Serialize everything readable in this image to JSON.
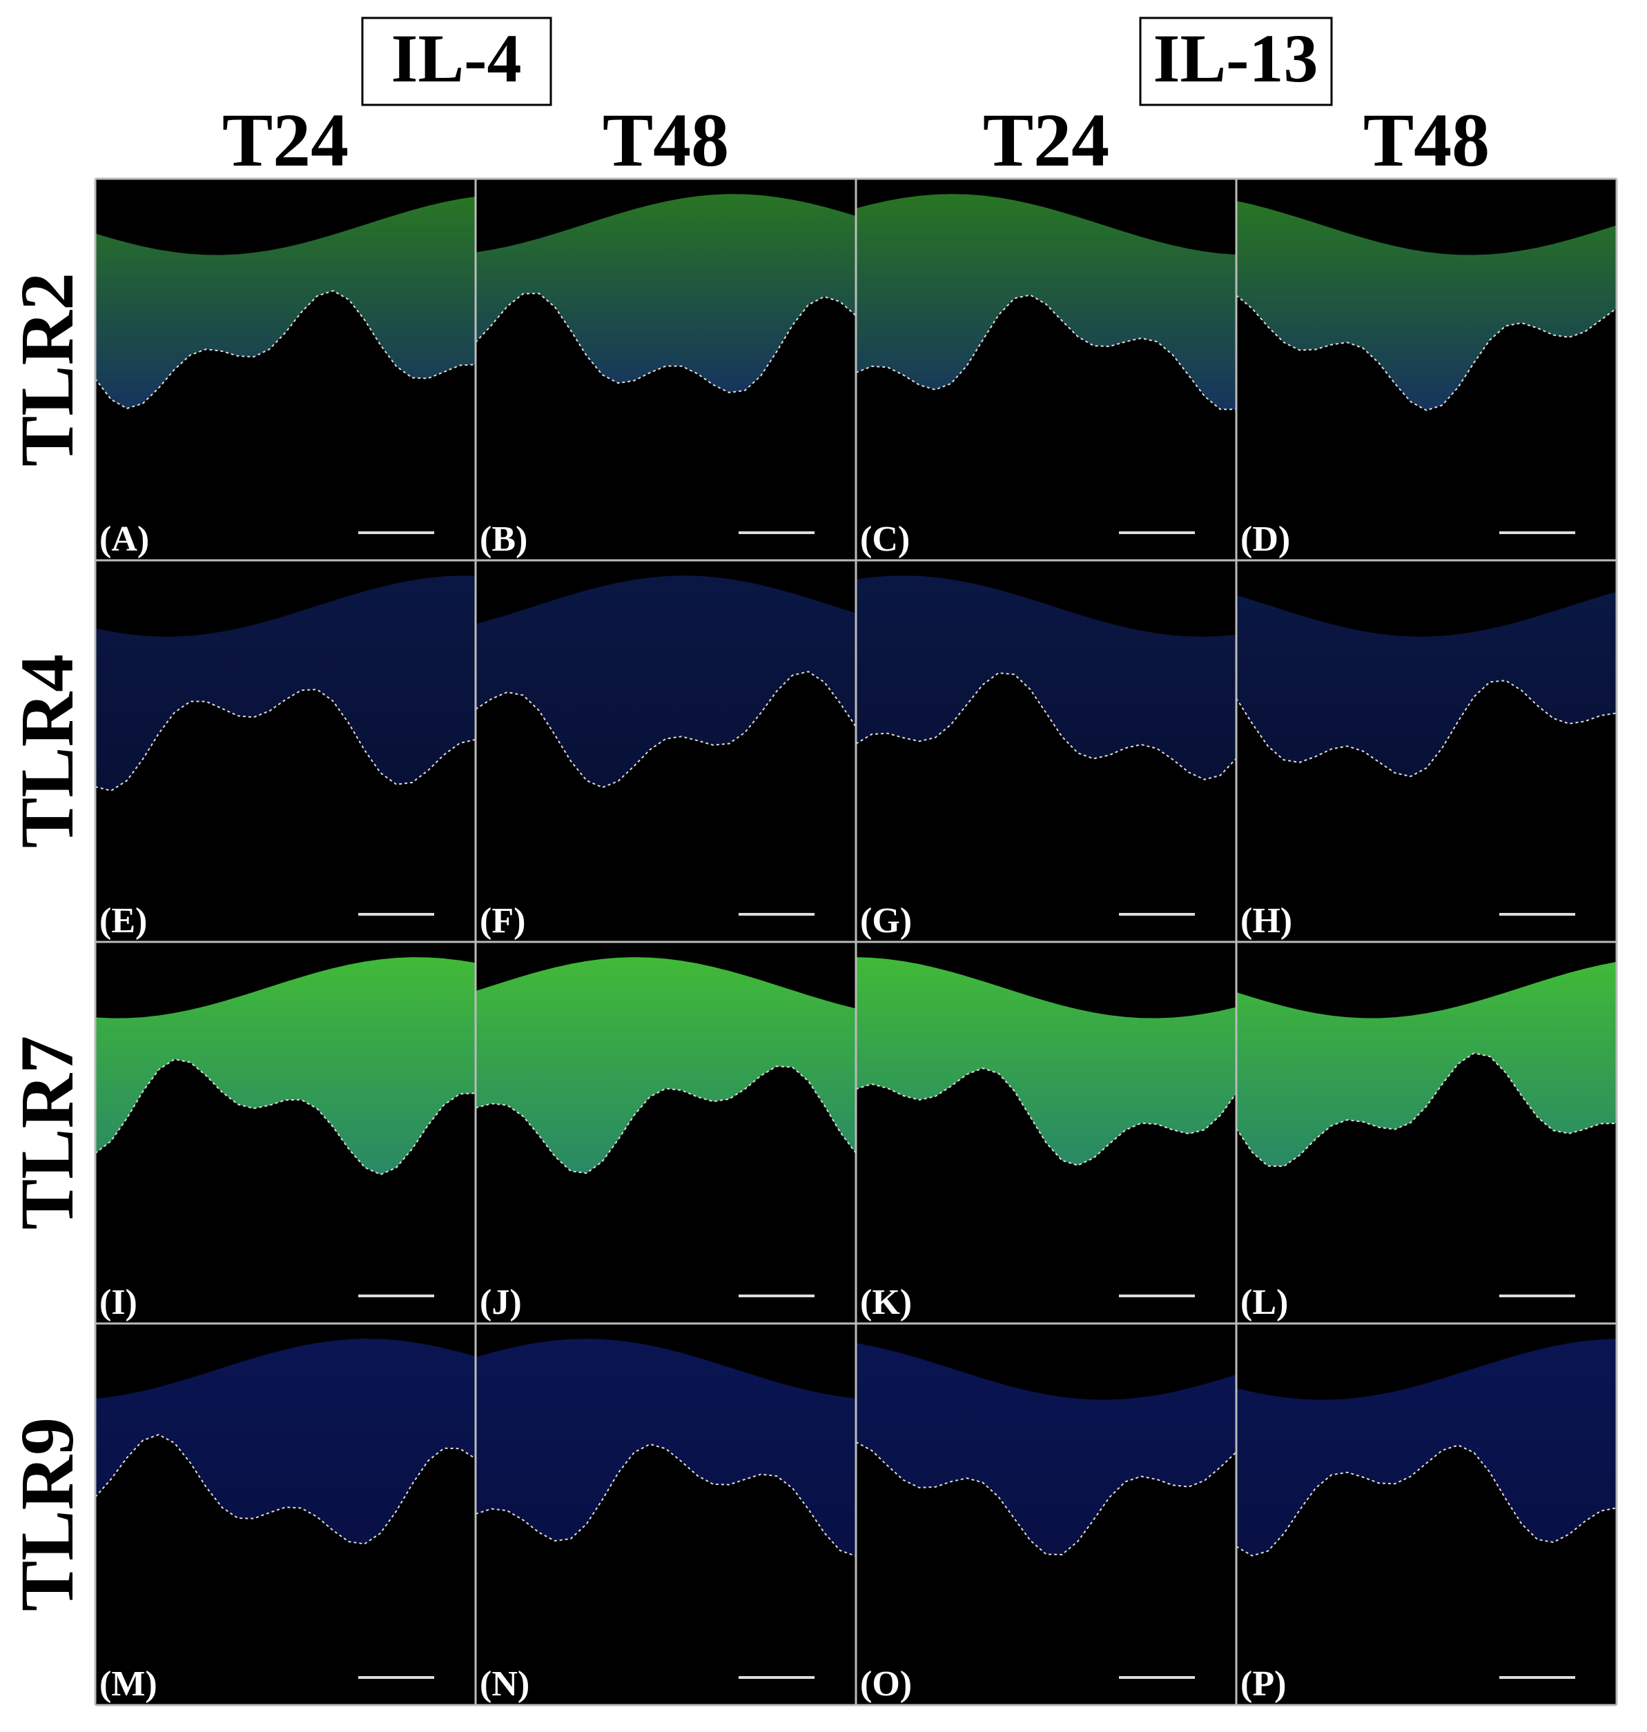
{
  "groups": [
    "IL-4",
    "IL-13"
  ],
  "columns": [
    "T24",
    "T48",
    "T24",
    "T48"
  ],
  "rows": [
    "TLR2",
    "TLR4",
    "TLR7",
    "TLR9"
  ],
  "panels": [
    "(A)",
    "(B)",
    "(C)",
    "(D)",
    "(E)",
    "(F)",
    "(G)",
    "(H)",
    "(I)",
    "(J)",
    "(K)",
    "(L)",
    "(M)",
    "(N)",
    "(O)",
    "(P)"
  ]
}
